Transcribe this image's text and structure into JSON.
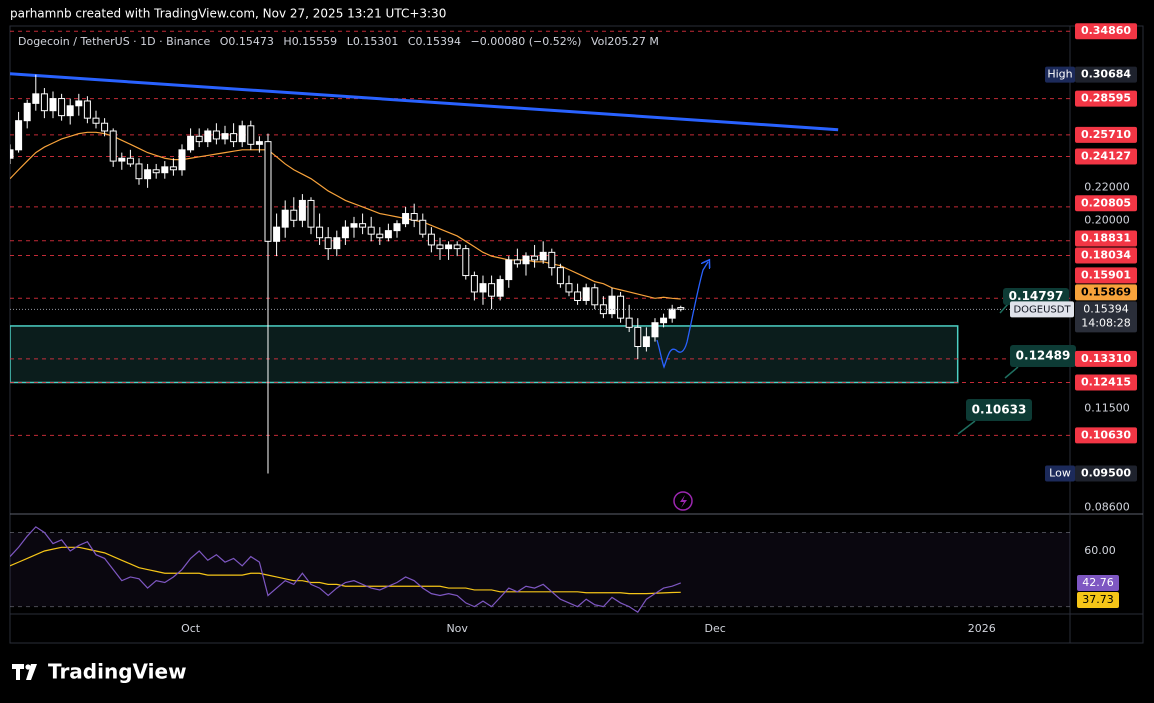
{
  "header": "parhamnb created with TradingView.com, Nov 27, 2025 13:21 UTC+3:30",
  "logo": "TradingView",
  "chart_data": {
    "type": "candlestick",
    "title": "Dogecoin / TetherUS · 1D · Binance",
    "ohlc_prefixes": [
      "O",
      "H",
      "L",
      "C"
    ],
    "change": "−0.00080 (−0.52%)",
    "volume": "Vol205.27 M",
    "symbol": "DOGEUSDT",
    "countdown": "14:08:28",
    "log_scale": true,
    "xlim": [
      0,
      123.26
    ],
    "ylim": [
      0.0846,
      0.354
    ],
    "xticks": [
      {
        "value": 21,
        "label": "Oct"
      },
      {
        "value": 52,
        "label": "Nov"
      },
      {
        "value": 82,
        "label": "Dec"
      },
      {
        "value": 113,
        "label": "2026"
      }
    ],
    "yticks": [
      {
        "value": 0.22,
        "label": "0.22000"
      },
      {
        "value": 0.2,
        "label": "0.20000"
      },
      {
        "value": 0.115,
        "label": "0.11500"
      },
      {
        "value": 0.086,
        "label": "0.08600"
      }
    ],
    "candles": {
      "up_color": "#ffffff",
      "down_color": "#000000",
      "open": [
        0.24,
        0.246,
        0.268,
        0.282,
        0.29,
        0.276,
        0.286,
        0.272,
        0.28,
        0.284,
        0.27,
        0.266,
        0.26,
        0.238,
        0.24,
        0.236,
        0.226,
        0.232,
        0.23,
        0.234,
        0.232,
        0.246,
        0.256,
        0.252,
        0.26,
        0.254,
        0.258,
        0.252,
        0.264,
        0.25,
        0.252,
        0.188,
        0.196,
        0.206,
        0.2,
        0.212,
        0.196,
        0.19,
        0.184,
        0.19,
        0.196,
        0.198,
        0.196,
        0.192,
        0.19,
        0.194,
        0.198,
        0.204,
        0.2,
        0.192,
        0.186,
        0.184,
        0.186,
        0.184,
        0.17,
        0.162,
        0.166,
        0.16,
        0.168,
        0.178,
        0.176,
        0.18,
        0.178,
        0.182,
        0.174,
        0.166,
        0.162,
        0.158,
        0.164,
        0.156,
        0.152,
        0.16,
        0.15,
        0.146,
        0.138,
        0.142,
        0.148,
        0.15,
        0.15473
      ],
      "high": [
        0.25,
        0.275,
        0.285,
        0.30684,
        0.295,
        0.292,
        0.29,
        0.286,
        0.29,
        0.288,
        0.276,
        0.27,
        0.262,
        0.244,
        0.246,
        0.24,
        0.236,
        0.236,
        0.238,
        0.24,
        0.25,
        0.262,
        0.262,
        0.262,
        0.266,
        0.264,
        0.266,
        0.268,
        0.268,
        0.256,
        0.258,
        0.204,
        0.212,
        0.214,
        0.216,
        0.214,
        0.204,
        0.196,
        0.194,
        0.2,
        0.202,
        0.204,
        0.202,
        0.196,
        0.198,
        0.2,
        0.208,
        0.21,
        0.204,
        0.196,
        0.19,
        0.188,
        0.188,
        0.186,
        0.172,
        0.17,
        0.17,
        0.17,
        0.18,
        0.184,
        0.182,
        0.186,
        0.188,
        0.184,
        0.176,
        0.17,
        0.166,
        0.166,
        0.166,
        0.16,
        0.164,
        0.162,
        0.156,
        0.15,
        0.146,
        0.15,
        0.152,
        0.156,
        0.15559
      ],
      "low": [
        0.236,
        0.244,
        0.262,
        0.276,
        0.27,
        0.27,
        0.268,
        0.265,
        0.272,
        0.266,
        0.262,
        0.256,
        0.234,
        0.232,
        0.234,
        0.222,
        0.22,
        0.226,
        0.226,
        0.228,
        0.228,
        0.244,
        0.248,
        0.248,
        0.25,
        0.25,
        0.248,
        0.248,
        0.246,
        0.244,
        0.095,
        0.18,
        0.19,
        0.196,
        0.196,
        0.192,
        0.186,
        0.178,
        0.18,
        0.186,
        0.19,
        0.192,
        0.188,
        0.186,
        0.188,
        0.19,
        0.196,
        0.196,
        0.19,
        0.182,
        0.178,
        0.178,
        0.18,
        0.168,
        0.158,
        0.156,
        0.154,
        0.158,
        0.164,
        0.174,
        0.17,
        0.174,
        0.176,
        0.17,
        0.164,
        0.16,
        0.156,
        0.156,
        0.154,
        0.15,
        0.15,
        0.148,
        0.144,
        0.133,
        0.136,
        0.14,
        0.146,
        0.148,
        0.15301
      ],
      "close": [
        0.246,
        0.268,
        0.282,
        0.29,
        0.276,
        0.286,
        0.272,
        0.28,
        0.284,
        0.27,
        0.266,
        0.26,
        0.238,
        0.24,
        0.236,
        0.226,
        0.232,
        0.23,
        0.234,
        0.232,
        0.246,
        0.256,
        0.252,
        0.26,
        0.254,
        0.258,
        0.252,
        0.264,
        0.25,
        0.252,
        0.188,
        0.196,
        0.206,
        0.2,
        0.212,
        0.196,
        0.19,
        0.184,
        0.19,
        0.196,
        0.198,
        0.196,
        0.192,
        0.19,
        0.194,
        0.198,
        0.204,
        0.2,
        0.192,
        0.186,
        0.184,
        0.186,
        0.184,
        0.17,
        0.162,
        0.166,
        0.16,
        0.168,
        0.178,
        0.176,
        0.18,
        0.178,
        0.182,
        0.174,
        0.166,
        0.162,
        0.158,
        0.164,
        0.156,
        0.152,
        0.16,
        0.15,
        0.146,
        0.138,
        0.142,
        0.148,
        0.15,
        0.154,
        0.15394
      ]
    },
    "ema": {
      "color": "#f7a23b",
      "values": [
        0.226,
        0.232,
        0.238,
        0.244,
        0.248,
        0.251,
        0.254,
        0.256,
        0.258,
        0.259,
        0.259,
        0.258,
        0.256,
        0.253,
        0.25,
        0.247,
        0.244,
        0.242,
        0.24,
        0.239,
        0.239,
        0.24,
        0.241,
        0.242,
        0.243,
        0.244,
        0.245,
        0.246,
        0.246,
        0.246,
        0.246,
        0.241,
        0.236,
        0.232,
        0.229,
        0.226,
        0.222,
        0.218,
        0.215,
        0.212,
        0.21,
        0.208,
        0.206,
        0.204,
        0.203,
        0.202,
        0.201,
        0.2,
        0.199,
        0.197,
        0.195,
        0.193,
        0.191,
        0.188,
        0.185,
        0.182,
        0.18,
        0.179,
        0.178,
        0.178,
        0.178,
        0.177,
        0.177,
        0.176,
        0.175,
        0.173,
        0.171,
        0.169,
        0.167,
        0.166,
        0.164,
        0.163,
        0.162,
        0.161,
        0.16,
        0.159,
        0.1595,
        0.159,
        0.15869
      ]
    },
    "trendline": {
      "color": "#2962ff",
      "x": [
        0,
        96.3
      ],
      "y": [
        0.3076,
        0.261
      ]
    },
    "zone": {
      "color": "#4dd0c4",
      "x": [
        0,
        110.2
      ],
      "y": [
        0.12415,
        0.1466
      ]
    },
    "levels": {
      "color": "#f23645",
      "values": [
        {
          "value": 0.3486,
          "label": "0.34860"
        },
        0.28595,
        {
          "value": 0.2571,
          "label": "0.25710"
        },
        0.24127,
        0.20805,
        0.18831,
        0.18034,
        0.15901,
        {
          "value": 0.1331,
          "label": "0.13310"
        },
        0.12415,
        {
          "value": 0.1063,
          "label": "0.10630"
        }
      ]
    },
    "high_marker": {
      "label": "High",
      "price": 0.30684
    },
    "low_marker": {
      "label": "Low",
      "price": {
        "value": 0.095,
        "label": "0.09500"
      }
    },
    "callouts": [
      0.14797,
      0.12489,
      0.10633
    ],
    "rsi": {
      "color": "#7e57c2",
      "ylim": [
        27.1,
        77.8
      ],
      "yticks": [
        {
          "value": 60,
          "label": "60.00"
        }
      ],
      "bands": [
        70,
        30
      ],
      "values": [
        57,
        62,
        68,
        73,
        70,
        64,
        66,
        60,
        63,
        65,
        58,
        56,
        50,
        44,
        46,
        45,
        40,
        44,
        43,
        46,
        50,
        56,
        60,
        55,
        58,
        54,
        56,
        52,
        57,
        54,
        36,
        40,
        44,
        42,
        48,
        42,
        40,
        36,
        40,
        43,
        44,
        42,
        40,
        39,
        41,
        43,
        46,
        44,
        40,
        37,
        36,
        37,
        36,
        32,
        30,
        33,
        30,
        35,
        40,
        38,
        41,
        40,
        42,
        38,
        34,
        32,
        30,
        34,
        31,
        30,
        35,
        32,
        30,
        27,
        34,
        37,
        40,
        41,
        42.76
      ]
    },
    "rsi_ma": {
      "color": "#f5c518",
      "values": [
        52,
        54,
        56,
        58,
        60,
        61,
        62,
        62,
        62,
        61,
        60,
        59,
        57,
        55,
        53,
        51,
        50,
        49,
        48,
        48,
        48,
        48,
        48,
        47,
        47,
        47,
        47,
        47,
        48,
        48,
        47,
        46,
        45,
        44,
        44,
        43,
        43,
        42,
        42,
        41,
        41,
        41,
        41,
        41,
        41,
        41,
        41,
        41,
        41,
        41,
        41,
        40,
        40,
        40,
        39,
        39,
        39,
        38,
        38,
        38,
        38,
        38,
        38,
        38,
        38,
        38,
        38,
        37.5,
        37.5,
        37.5,
        37.5,
        37.5,
        37,
        37,
        37,
        37.2,
        37.4,
        37.6,
        37.73
      ]
    }
  }
}
